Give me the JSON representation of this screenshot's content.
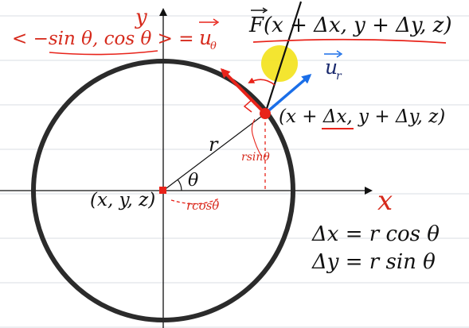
{
  "axes": {
    "x_label": "x",
    "y_label": "y"
  },
  "labels": {
    "origin": "(x, y, z)",
    "radius": "r",
    "angle": "θ",
    "point": "(x + Δx, y + Δy, z)",
    "force": "F(x + Δx, y + Δy, z)",
    "force_vec_letter": "F",
    "ur": "u",
    "ur_sub": "r",
    "utheta_lhs": "< −sin θ, cos θ > =",
    "utheta": "u",
    "utheta_sub": "θ",
    "rsin": "rsinθ",
    "rcos": "rcosθ"
  },
  "equations": {
    "dx": "Δx = r cos θ",
    "dy": "Δy = r sin θ"
  },
  "colors": {
    "ink": "#111111",
    "red": "#e8231a",
    "blue": "#1a6ee8",
    "highlight": "#f3e21a",
    "rule": "#d9dde3"
  }
}
